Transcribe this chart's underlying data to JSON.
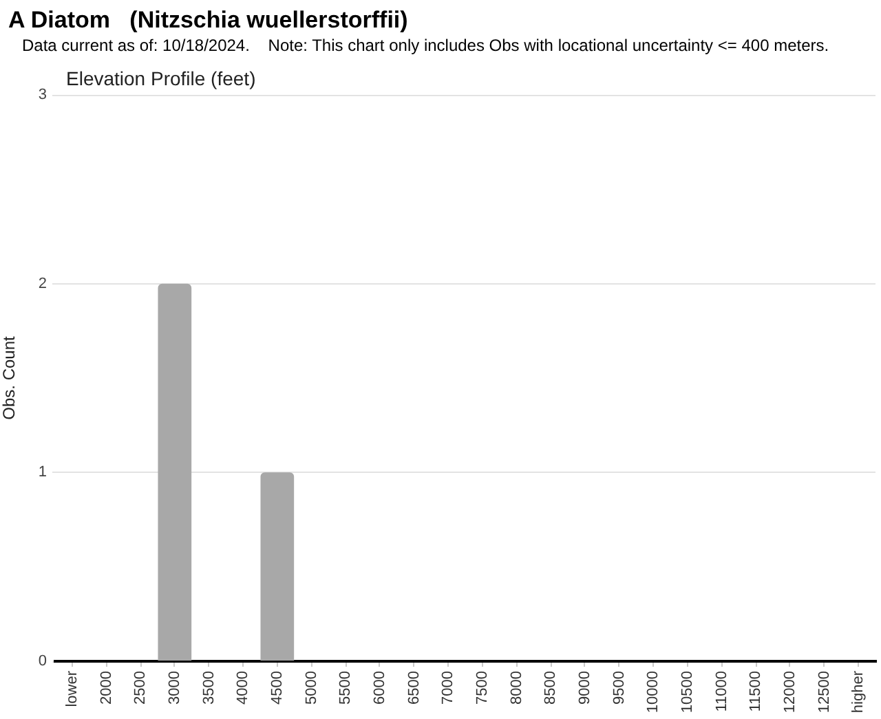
{
  "chart_data": {
    "type": "bar",
    "title": "A Diatom   (Nitzschia wuellerstorffii)",
    "subtitle": "Elevation Profile (feet)",
    "annotations": [
      "Data current as of: 10/18/2024.    Note: This chart only includes Obs with locational uncertainty <= 400 meters."
    ],
    "ylabel": "Obs. Count",
    "categories": [
      "lower",
      "2000",
      "2500",
      "3000",
      "3500",
      "4000",
      "4500",
      "5000",
      "5500",
      "6000",
      "6500",
      "7000",
      "7500",
      "8000",
      "8500",
      "9000",
      "9500",
      "10000",
      "10500",
      "11000",
      "11500",
      "12000",
      "12500",
      "higher"
    ],
    "values": [
      0,
      0,
      0,
      2,
      0,
      0,
      1,
      0,
      0,
      0,
      0,
      0,
      0,
      0,
      0,
      0,
      0,
      0,
      0,
      0,
      0,
      0,
      0,
      0
    ],
    "color": "#a8a8a8",
    "ylim": [
      0,
      3
    ],
    "yticks": [
      0,
      1,
      2,
      3
    ],
    "grid": "y"
  }
}
